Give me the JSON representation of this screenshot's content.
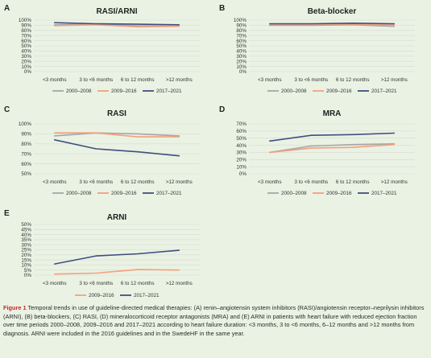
{
  "colors": {
    "s2000": "#a6a6a6",
    "s2009": "#f4a07e",
    "s2017": "#3f4f80",
    "grid": "#d9d9d9",
    "text": "#333333",
    "caption_label": "#c8242b"
  },
  "chart_data": [
    {
      "type": "line",
      "panel_letter": "A",
      "title": "RASI/ARNI",
      "categories": [
        "<3 months",
        "3 to <6 months",
        "6 to 12 months",
        ">12 months"
      ],
      "ylim": [
        0,
        1
      ],
      "yticks": [
        "0%",
        "10%",
        "20%",
        "30%",
        "40%",
        "50%",
        "60%",
        "70%",
        "80%",
        "90%",
        "100%"
      ],
      "grid": true,
      "legend_position": "bottom",
      "series": [
        {
          "name": "2000–2008",
          "color": "#a6a6a6",
          "values": [
            0.91,
            0.92,
            0.89,
            0.88
          ]
        },
        {
          "name": "2009–2016",
          "color": "#f4a07e",
          "values": [
            0.89,
            0.91,
            0.87,
            0.88
          ]
        },
        {
          "name": "2017–2021",
          "color": "#3f4f80",
          "values": [
            0.95,
            0.93,
            0.92,
            0.91
          ]
        }
      ]
    },
    {
      "type": "line",
      "panel_letter": "B",
      "title": "Beta-blocker",
      "categories": [
        "<3 months",
        "3 to <6 months",
        "6 to 12 months",
        ">12 months"
      ],
      "ylim": [
        0,
        1
      ],
      "yticks": [
        "0%",
        "10%",
        "20%",
        "30%",
        "40%",
        "50%",
        "60%",
        "70%",
        "80%",
        "90%",
        "100%"
      ],
      "grid": true,
      "legend_position": "bottom",
      "series": [
        {
          "name": "2000–2008",
          "color": "#a6a6a6",
          "values": [
            0.9,
            0.9,
            0.91,
            0.88
          ]
        },
        {
          "name": "2009–2016",
          "color": "#f4a07e",
          "values": [
            0.92,
            0.92,
            0.92,
            0.91
          ]
        },
        {
          "name": "2017–2021",
          "color": "#3f4f80",
          "values": [
            0.93,
            0.93,
            0.94,
            0.93
          ]
        }
      ]
    },
    {
      "type": "line",
      "panel_letter": "C",
      "title": "RASI",
      "categories": [
        "<3 months",
        "3 to <6 months",
        "6 to 12 months",
        ">12 months"
      ],
      "ylim": [
        0.5,
        1
      ],
      "yticks": [
        "50%",
        "60%",
        "70%",
        "80%",
        "90%",
        "100%"
      ],
      "grid": true,
      "legend_position": "bottom",
      "series": [
        {
          "name": "2000–2008",
          "color": "#a6a6a6",
          "values": [
            0.88,
            0.91,
            0.9,
            0.88
          ]
        },
        {
          "name": "2009–2016",
          "color": "#f4a07e",
          "values": [
            0.91,
            0.91,
            0.87,
            0.87
          ]
        },
        {
          "name": "2017–2021",
          "color": "#3f4f80",
          "values": [
            0.84,
            0.75,
            0.72,
            0.68
          ]
        }
      ]
    },
    {
      "type": "line",
      "panel_letter": "D",
      "title": "MRA",
      "categories": [
        "<3 months",
        "3 to <6 months",
        "6 to 12 months",
        ">12 months"
      ],
      "ylim": [
        0,
        0.7
      ],
      "yticks": [
        "0%",
        "10%",
        "20%",
        "30%",
        "40%",
        "50%",
        "60%",
        "70%"
      ],
      "grid": true,
      "legend_position": "bottom",
      "series": [
        {
          "name": "2000–2008",
          "color": "#a6a6a6",
          "values": [
            0.3,
            0.39,
            0.41,
            0.42
          ]
        },
        {
          "name": "2009–2016",
          "color": "#f4a07e",
          "values": [
            0.3,
            0.36,
            0.37,
            0.41
          ]
        },
        {
          "name": "2017–2021",
          "color": "#3f4f80",
          "values": [
            0.46,
            0.54,
            0.55,
            0.57
          ]
        }
      ]
    },
    {
      "type": "line",
      "panel_letter": "E",
      "title": "ARNI",
      "categories": [
        "<3 months",
        "3 to <6 months",
        "6 to 12 months",
        ">12 months"
      ],
      "ylim": [
        0,
        0.5
      ],
      "yticks": [
        "0%",
        "5%",
        "10%",
        "15%",
        "20%",
        "25%",
        "30%",
        "35%",
        "40%",
        "45%",
        "50%"
      ],
      "grid": true,
      "legend_position": "bottom",
      "series": [
        {
          "name": "2009–2016",
          "color": "#f4a07e",
          "values": [
            0.01,
            0.02,
            0.055,
            0.05
          ]
        },
        {
          "name": "2017–2021",
          "color": "#3f4f80",
          "values": [
            0.11,
            0.19,
            0.21,
            0.245
          ]
        }
      ]
    }
  ],
  "caption": {
    "label": "Figure 1",
    "text": "Temporal trends in use of guideline-directed medical therapies: (A) renin–angiotensin system inhibitors (RASI)/angiotensin receptor–neprilysin inhibitors (ARNI), (B) beta-blockers, (C) RASI, (D) mineralocorticoid receptor antagonists (MRA) and (E) ARNI in patients with heart failure with reduced ejection fraction over time periods 2000–2008, 2009–2016 and 2017–2021 according to heart failure duration: <3 months, 3 to <6 months, 6–12 months and >12 months from diagnosis. ARNI were included in the 2016 guidelines and in the SwedeHF in the same year."
  }
}
